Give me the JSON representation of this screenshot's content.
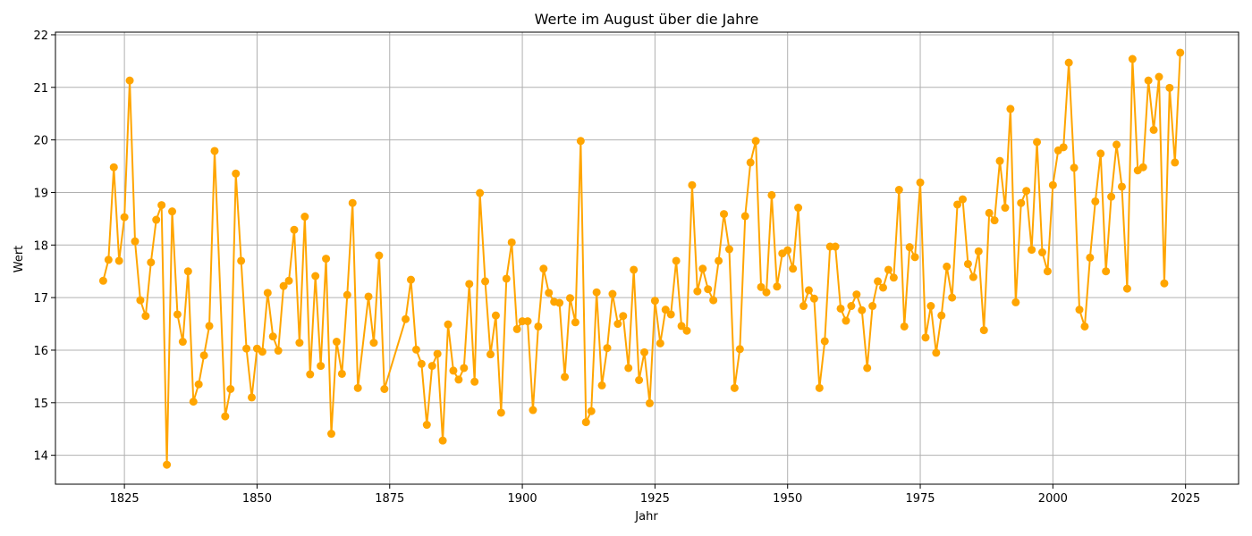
{
  "chart_data": {
    "type": "line",
    "title": "Werte im August über die Jahre",
    "xlabel": "Jahr",
    "ylabel": "Wert",
    "xlim": [
      1812,
      2035
    ],
    "ylim": [
      13.45,
      22.05
    ],
    "x_ticks": [
      1825,
      1850,
      1875,
      1900,
      1925,
      1950,
      1975,
      2000,
      2025
    ],
    "y_ticks": [
      14,
      15,
      16,
      17,
      18,
      19,
      20,
      21,
      22
    ],
    "grid": true,
    "color": "#FFA500",
    "series": [
      {
        "x": [
          1821,
          1822,
          1823,
          1824,
          1825,
          1826,
          1827,
          1828,
          1829,
          1830,
          1831,
          1832,
          1833,
          1834,
          1835,
          1836,
          1837,
          1838,
          1839,
          1840,
          1841,
          1842,
          1844,
          1845,
          1846,
          1847,
          1848,
          1849,
          1850,
          1851,
          1852,
          1853,
          1854,
          1855,
          1856,
          1857,
          1858,
          1859,
          1860,
          1861,
          1862,
          1863,
          1864,
          1865,
          1866,
          1867,
          1868,
          1869,
          1871,
          1872,
          1873,
          1874,
          1878,
          1879,
          1880,
          1881,
          1882,
          1883,
          1884,
          1885,
          1886,
          1887,
          1888,
          1889,
          1890,
          1891,
          1892,
          1893,
          1894,
          1895,
          1896,
          1897,
          1898,
          1899,
          1900,
          1901,
          1902,
          1903,
          1904,
          1905,
          1906,
          1907,
          1908,
          1909,
          1910,
          1911,
          1912,
          1913,
          1914,
          1915,
          1916,
          1917,
          1918,
          1919,
          1920,
          1921,
          1922,
          1923,
          1924,
          1925,
          1926,
          1927,
          1928,
          1929,
          1930,
          1931,
          1932,
          1933,
          1934,
          1935,
          1936,
          1937,
          1938,
          1939,
          1940,
          1941,
          1942,
          1943,
          1944,
          1945,
          1946,
          1947,
          1948,
          1949,
          1950,
          1951,
          1952,
          1953,
          1954,
          1955,
          1956,
          1957,
          1958,
          1959,
          1960,
          1961,
          1962,
          1963,
          1964,
          1965,
          1966,
          1967,
          1968,
          1969,
          1970,
          1971,
          1972,
          1973,
          1974,
          1975,
          1976,
          1977,
          1978,
          1979,
          1980,
          1981,
          1982,
          1983,
          1984,
          1985,
          1986,
          1987,
          1988,
          1989,
          1990,
          1991,
          1992,
          1993,
          1994,
          1995,
          1996,
          1997,
          1998,
          1999,
          2000,
          2001,
          2002,
          2003,
          2004,
          2005,
          2006,
          2007,
          2008,
          2009,
          2010,
          2011,
          2012,
          2013,
          2014,
          2015,
          2016,
          2017,
          2018,
          2019,
          2020,
          2021,
          2022,
          2023,
          2024
        ],
        "y": [
          17.32,
          17.72,
          19.48,
          17.7,
          18.53,
          21.13,
          18.07,
          16.95,
          16.65,
          17.67,
          18.48,
          18.76,
          13.82,
          18.64,
          16.68,
          16.16,
          17.5,
          15.02,
          15.35,
          15.9,
          16.46,
          19.79,
          14.74,
          15.26,
          19.36,
          17.7,
          16.03,
          15.1,
          16.03,
          15.97,
          17.09,
          16.26,
          15.99,
          17.22,
          17.32,
          18.29,
          16.14,
          18.54,
          15.54,
          17.41,
          15.7,
          17.74,
          14.41,
          16.16,
          15.55,
          17.05,
          18.8,
          15.28,
          17.02,
          16.14,
          17.8,
          15.26,
          16.59,
          17.34,
          16.01,
          15.74,
          14.58,
          15.7,
          15.93,
          14.28,
          16.49,
          15.61,
          15.44,
          15.66,
          17.26,
          15.4,
          18.99,
          17.31,
          15.92,
          16.66,
          14.81,
          17.36,
          18.05,
          16.4,
          16.55,
          16.55,
          14.86,
          16.45,
          17.55,
          17.09,
          16.92,
          16.9,
          15.49,
          16.99,
          16.53,
          19.98,
          14.63,
          14.84,
          17.1,
          15.33,
          16.04,
          17.07,
          16.5,
          16.65,
          15.66,
          17.53,
          15.43,
          15.96,
          14.99,
          16.94,
          16.13,
          16.77,
          16.68,
          17.7,
          16.46,
          16.37,
          19.14,
          17.12,
          17.55,
          17.16,
          16.95,
          17.7,
          18.59,
          17.92,
          15.28,
          16.02,
          18.55,
          19.57,
          19.98,
          17.2,
          17.1,
          18.95,
          17.21,
          17.84,
          17.9,
          17.55,
          18.71,
          16.84,
          17.14,
          16.98,
          15.28,
          16.17,
          17.97,
          17.97,
          16.79,
          16.56,
          16.84,
          17.06,
          16.76,
          15.66,
          16.84,
          17.31,
          17.19,
          17.53,
          17.38,
          19.05,
          16.45,
          17.96,
          17.77,
          19.19,
          16.24,
          16.84,
          15.95,
          16.66,
          17.59,
          17.0,
          18.77,
          18.87,
          17.64,
          17.39,
          17.88,
          16.38,
          18.61,
          18.47,
          19.6,
          18.71,
          20.59,
          16.91,
          18.8,
          19.03,
          17.91,
          19.96,
          17.86,
          17.5,
          19.14,
          19.8,
          19.86,
          21.47,
          19.47,
          16.77,
          16.45,
          17.76,
          18.83,
          19.74,
          17.5,
          18.92,
          19.91,
          19.11,
          17.17,
          21.54,
          19.42,
          19.48,
          21.13,
          20.19,
          21.2,
          17.27,
          20.99,
          19.57,
          21.66
        ]
      }
    ]
  }
}
